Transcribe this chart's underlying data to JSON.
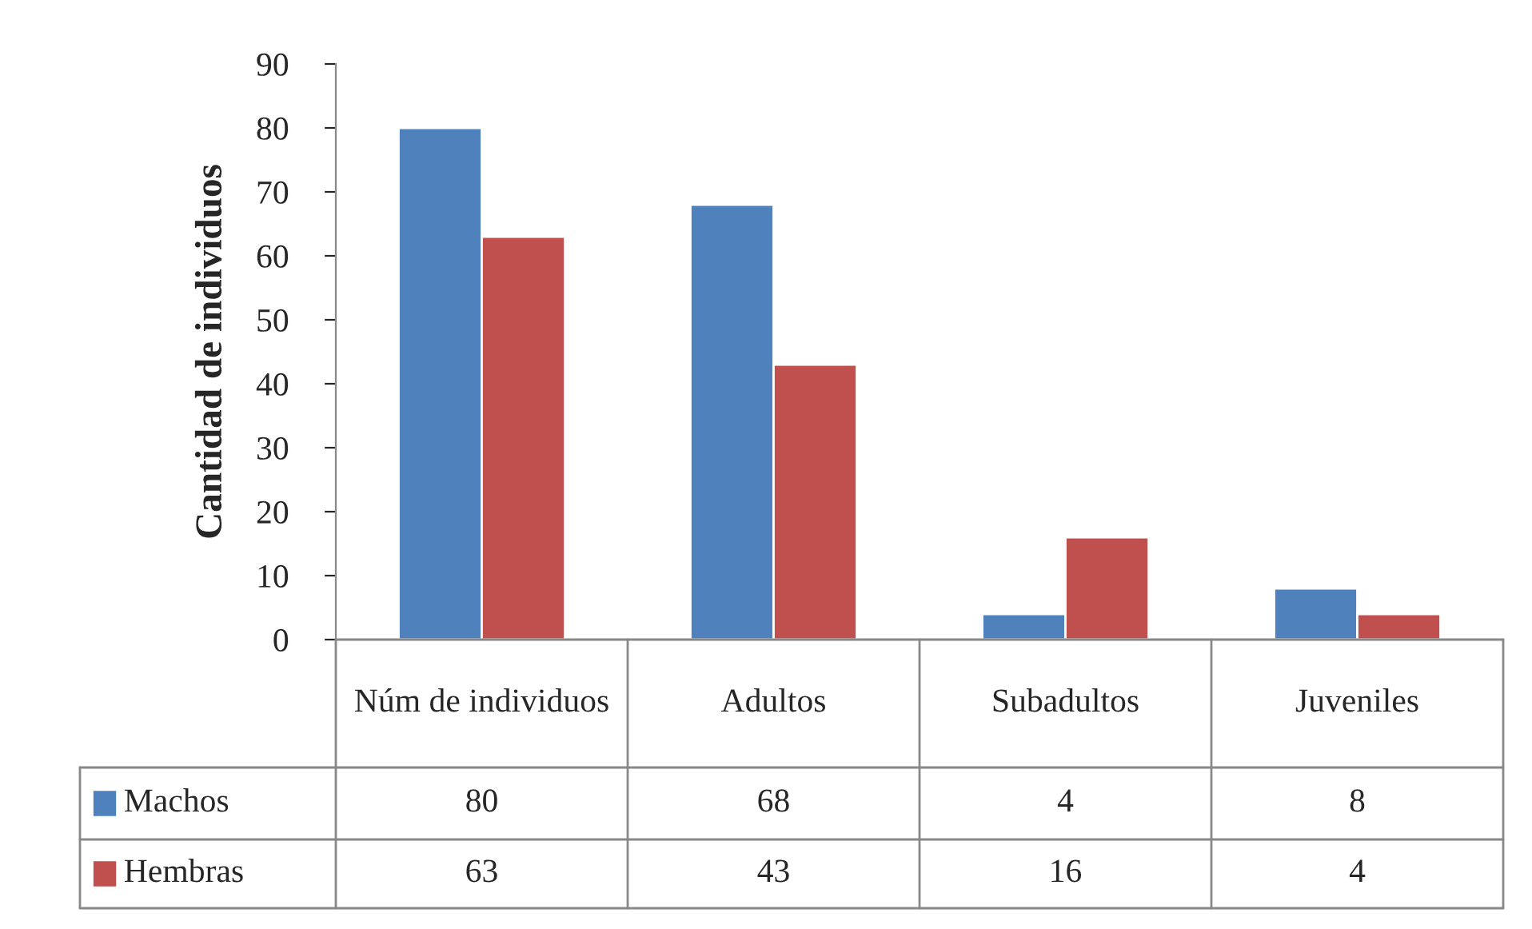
{
  "chart_data": {
    "type": "bar",
    "ylabel": "Cantidad de individuos",
    "categories": [
      "Núm de individuos",
      "Adultos",
      "Subadultos",
      "Juveniles"
    ],
    "series": [
      {
        "name": "Machos",
        "color": "#4f81bd",
        "values": [
          80,
          68,
          4,
          8
        ]
      },
      {
        "name": "Hembras",
        "color": "#c0504d",
        "values": [
          63,
          43,
          16,
          4
        ]
      }
    ],
    "ylim": [
      0,
      90
    ],
    "yticks": [
      0,
      10,
      20,
      30,
      40,
      50,
      60,
      70,
      80,
      90
    ],
    "grid": false,
    "legend": "bottom",
    "data_labels": true
  }
}
